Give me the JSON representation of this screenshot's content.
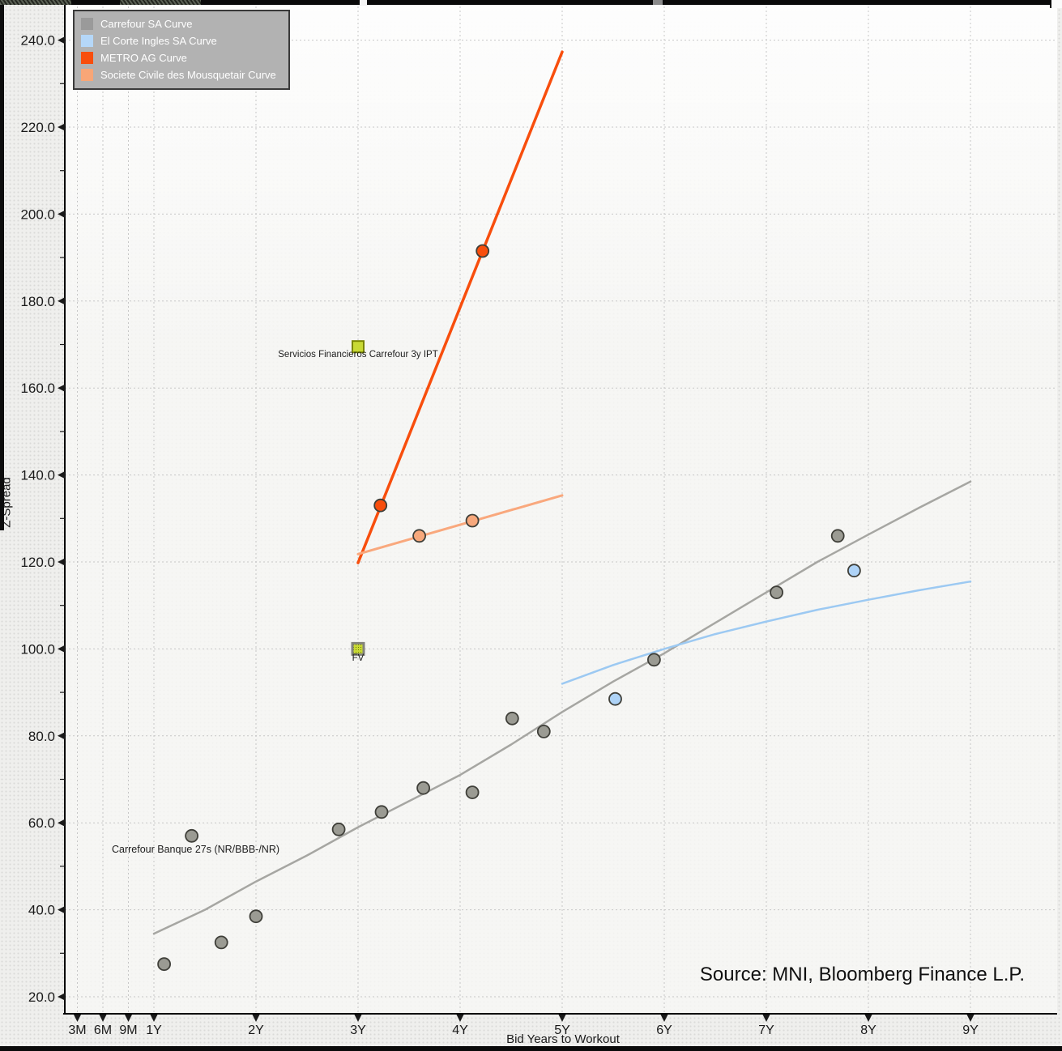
{
  "legend": {
    "items": [
      {
        "label": "Carrefour SA Curve",
        "color": "#9a9a9a"
      },
      {
        "label": "El Corte Ingles SA Curve",
        "color": "#b5d7f8"
      },
      {
        "label": "METRO AG Curve",
        "color": "#f84e0d"
      },
      {
        "label": "Societe Civile des Mousquetair Curve",
        "color": "#f8a677"
      }
    ]
  },
  "chart_data": {
    "type": "scatter",
    "title": "",
    "xlabel": "Bid Years to Workout",
    "ylabel": "Z-Spread",
    "grid": true,
    "legend_position": "top-left",
    "x_axis_unit": "years",
    "x_ticks": [
      {
        "label": "3M",
        "t": 0.25
      },
      {
        "label": "6M",
        "t": 0.5
      },
      {
        "label": "9M",
        "t": 0.75
      },
      {
        "label": "1Y",
        "t": 1
      },
      {
        "label": "2Y",
        "t": 2
      },
      {
        "label": "3Y",
        "t": 3
      },
      {
        "label": "4Y",
        "t": 4
      },
      {
        "label": "5Y",
        "t": 5
      },
      {
        "label": "6Y",
        "t": 6
      },
      {
        "label": "7Y",
        "t": 7
      },
      {
        "label": "8Y",
        "t": 8
      },
      {
        "label": "9Y",
        "t": 9
      }
    ],
    "y_ticks": [
      {
        "label": "20.0",
        "v": 20
      },
      {
        "label": "40.0",
        "v": 40
      },
      {
        "label": "60.0",
        "v": 60
      },
      {
        "label": "80.0",
        "v": 80
      },
      {
        "label": "100.0",
        "v": 100
      },
      {
        "label": "120.0",
        "v": 120
      },
      {
        "label": "140.0",
        "v": 140
      },
      {
        "label": "160.0",
        "v": 160
      },
      {
        "label": "180.0",
        "v": 180
      },
      {
        "label": "200.0",
        "v": 200
      },
      {
        "label": "220.0",
        "v": 220
      },
      {
        "label": "240.0",
        "v": 240
      }
    ],
    "y_range": [
      14,
      247
    ],
    "x_range_years": [
      0.13,
      9.85
    ],
    "series": [
      {
        "name": "Carrefour SA Curve",
        "line_color": "#a6a6a2",
        "point_color": "#9b9b93",
        "line_width": 2.5,
        "points": [
          [
            1.1,
            27.5
          ],
          [
            1.37,
            57
          ],
          [
            1.66,
            32.5
          ],
          [
            2.0,
            38.5
          ],
          [
            2.81,
            58.5
          ],
          [
            3.23,
            62.5
          ],
          [
            3.64,
            68
          ],
          [
            4.12,
            67
          ],
          [
            4.51,
            84
          ],
          [
            4.82,
            81
          ],
          [
            5.9,
            97.5
          ],
          [
            7.1,
            113
          ],
          [
            7.7,
            126
          ]
        ],
        "curve": [
          [
            1,
            34.5
          ],
          [
            1.5,
            40
          ],
          [
            2,
            46.5
          ],
          [
            2.5,
            52.5
          ],
          [
            3,
            59
          ],
          [
            3.5,
            65
          ],
          [
            4,
            71
          ],
          [
            4.5,
            78
          ],
          [
            5,
            85.5
          ],
          [
            5.5,
            92.5
          ],
          [
            6,
            99
          ],
          [
            6.5,
            106
          ],
          [
            7,
            113
          ],
          [
            7.5,
            120
          ],
          [
            8,
            126.3
          ],
          [
            8.5,
            132.5
          ],
          [
            9,
            138.5
          ]
        ]
      },
      {
        "name": "El Corte Ingles SA Curve",
        "line_color": "#9cc9f2",
        "point_color": "#aed3f7",
        "line_width": 2.5,
        "points": [
          [
            5.52,
            88.5
          ],
          [
            7.86,
            118
          ]
        ],
        "curve": [
          [
            5,
            92
          ],
          [
            5.5,
            96.3
          ],
          [
            6,
            100
          ],
          [
            6.5,
            103.4
          ],
          [
            7,
            106.3
          ],
          [
            7.5,
            109
          ],
          [
            8,
            111.3
          ],
          [
            8.5,
            113.5
          ],
          [
            9,
            115.5
          ]
        ]
      },
      {
        "name": "METRO AG Curve",
        "line_color": "#f84e0d",
        "point_color": "#f84e0d",
        "line_width": 3.5,
        "points": [
          [
            3.22,
            133
          ],
          [
            4.22,
            191.5
          ]
        ],
        "curve": [
          [
            3,
            119.8
          ],
          [
            5,
            237.3
          ]
        ]
      },
      {
        "name": "Societe Civile des Mousquetair Curve",
        "line_color": "#f9a87d",
        "point_color": "#f7a87c",
        "line_width": 3,
        "points": [
          [
            3.6,
            126
          ],
          [
            4.12,
            129.5
          ]
        ],
        "curve": [
          [
            3,
            121.8
          ],
          [
            5,
            135.3
          ]
        ]
      }
    ],
    "markers": [
      {
        "label": "Servicios Financieros Carrefour 3y IPT",
        "x": 3.0,
        "y": 169.5,
        "fill": "#c8d934",
        "border": "#7a8500",
        "style": "ipt-square"
      },
      {
        "label": "FV",
        "x": 3.0,
        "y": 100,
        "fill": "#c8d934",
        "border": "#83837b",
        "style": "fv-square"
      }
    ],
    "annotations": [
      {
        "text": "Carrefour Banque 27s (NR/BBB-/NR)",
        "x": 1.37,
        "y": 57,
        "placement": "below-left"
      }
    ],
    "source": "Source: MNI, Bloomberg Finance L.P."
  }
}
